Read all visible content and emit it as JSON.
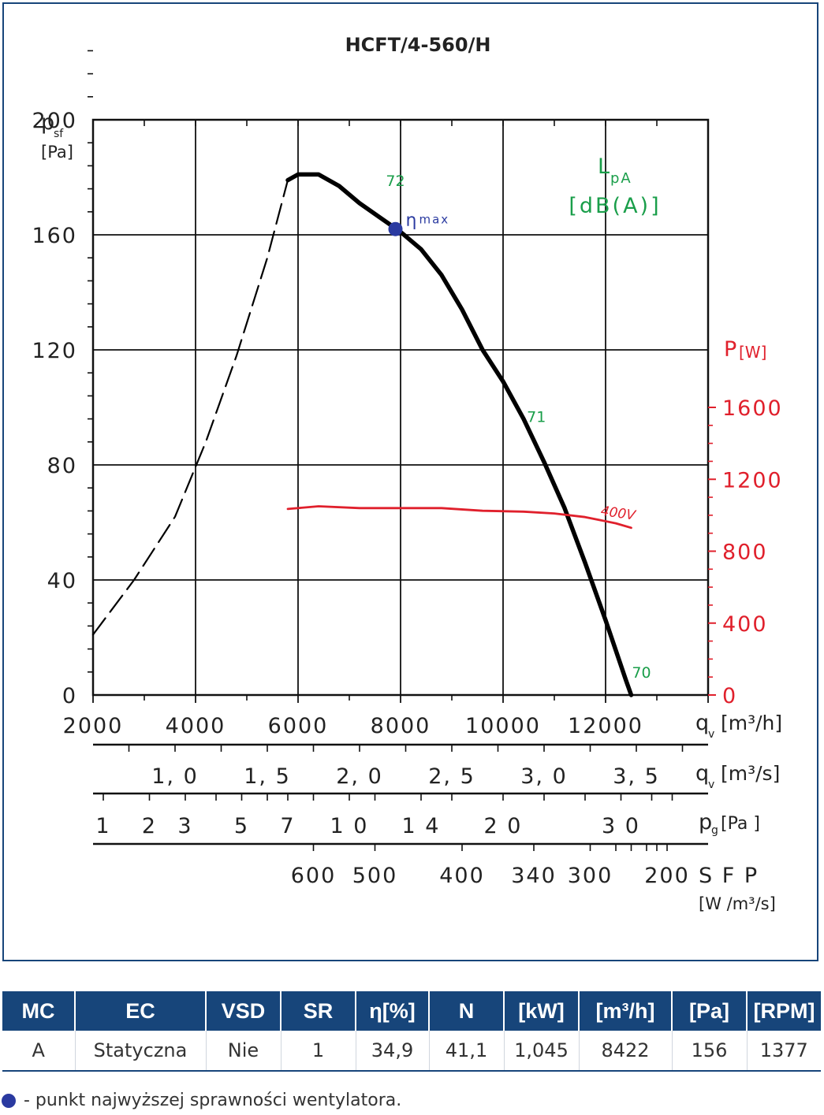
{
  "chart_data": {
    "type": "line",
    "title": "HCFT/4-560/H",
    "x_axis": {
      "label": "q",
      "label_sub": "v",
      "unit": "[m³/h]",
      "range": [
        2000,
        14000
      ],
      "ticks": [
        2000,
        4000,
        6000,
        8000,
        10000,
        12000
      ],
      "tick_labels": [
        "2000",
        "4000",
        "6000",
        "8000",
        "10000",
        "12000"
      ]
    },
    "y_axis": {
      "label": "p",
      "label_sub": "sf",
      "unit": "[Pa]",
      "range": [
        0,
        200
      ],
      "ticks": [
        0,
        40,
        80,
        120,
        160,
        200
      ],
      "tick_labels": [
        "0",
        "40",
        "80",
        "120",
        "160",
        "200"
      ]
    },
    "y2_axis": {
      "label": "P",
      "unit": "[W]",
      "range": [
        0,
        1600
      ],
      "ticks": [
        0,
        400,
        800,
        1200,
        1600
      ],
      "tick_labels": [
        "0",
        "400",
        "800",
        "1200",
        "1600"
      ],
      "color": "#e0202c"
    },
    "secondary_scales": [
      {
        "label": "q",
        "label_sub": "v",
        "unit": "[m³/s]",
        "tick_labels": [
          {
            "x": 3600,
            "text": "1, 0"
          },
          {
            "x": 5400,
            "text": "1, 5"
          },
          {
            "x": 7200,
            "text": "2, 0"
          },
          {
            "x": 9000,
            "text": "2, 5"
          },
          {
            "x": 10800,
            "text": "3, 0"
          },
          {
            "x": 12600,
            "text": "3, 5"
          }
        ]
      },
      {
        "label": "p",
        "label_sub": "g",
        "unit": "[Pa ]",
        "tick_labels": [
          {
            "x": 2200,
            "text": "1"
          },
          {
            "x": 3100,
            "text": "2"
          },
          {
            "x": 3800,
            "text": "3"
          },
          {
            "x": 4900,
            "text": "5"
          },
          {
            "x": 5800,
            "text": "7"
          },
          {
            "x": 7000,
            "text": "1 0"
          },
          {
            "x": 8400,
            "text": "1 4"
          },
          {
            "x": 10000,
            "text": "2 0"
          },
          {
            "x": 12300,
            "text": "3 0"
          }
        ]
      },
      {
        "label": "S F P",
        "unit": "[W /m³/s]",
        "tick_labels": [
          {
            "x": 6300,
            "text": "600"
          },
          {
            "x": 7500,
            "text": "500"
          },
          {
            "x": 9200,
            "text": "400"
          },
          {
            "x": 10600,
            "text": "340"
          },
          {
            "x": 11700,
            "text": "300"
          },
          {
            "x": 13200,
            "text": "200"
          }
        ]
      }
    ],
    "series": [
      {
        "role": "pressure_dashed",
        "color": "#000000",
        "x": [
          2000,
          2800,
          3600,
          4200,
          4800,
          5400,
          5800
        ],
        "y": [
          21,
          40,
          62,
          88,
          118,
          152,
          179
        ]
      },
      {
        "role": "pressure",
        "color": "#000000",
        "x": [
          5800,
          6000,
          6400,
          6800,
          7200,
          7600,
          8000,
          8400,
          8800,
          9200,
          9600,
          10000,
          10400,
          10800,
          11200,
          11600,
          12000,
          12400,
          12500
        ],
        "y": [
          179,
          181,
          181,
          177,
          171,
          166,
          161,
          155,
          146,
          134,
          120,
          109,
          96,
          81,
          65,
          46,
          26,
          5,
          0
        ]
      },
      {
        "name": "400V",
        "axis": "y2",
        "color": "#e0202c",
        "x": [
          5800,
          6400,
          7200,
          8000,
          8800,
          9600,
          10400,
          11000,
          11600,
          12200,
          12500
        ],
        "y": [
          1035,
          1050,
          1040,
          1040,
          1040,
          1025,
          1020,
          1010,
          990,
          955,
          930
        ]
      }
    ],
    "annotations": {
      "lpa_label": "L",
      "lpa_sub": "pA",
      "lpa_unit": "[dB(A)]",
      "lpa_color": "#1a9e4a",
      "noise": [
        {
          "x": 7900,
          "y": 177,
          "text": "72"
        },
        {
          "x": 10650,
          "y": 95,
          "text": "71"
        },
        {
          "x": 12700,
          "y": 6,
          "text": "70"
        }
      ],
      "eta_max": {
        "x": 7900,
        "y": 162,
        "label": "η",
        "sub": "max",
        "color": "#2a3aa0"
      },
      "series_label": {
        "x": 11900,
        "y": 1010,
        "text": "400V"
      }
    },
    "grid": true
  },
  "table": {
    "headers": [
      "MC",
      "EC",
      "VSD",
      "SR",
      "η[%]",
      "N",
      "[kW]",
      "[m³/h]",
      "[Pa]",
      "[RPM]"
    ],
    "row": [
      "A",
      "Statyczna",
      "Nie",
      "1",
      "34,9",
      "41,1",
      "1,045",
      "8422",
      "156",
      "1377"
    ]
  },
  "footnote": "- punkt najwyższej sprawności wentylatora."
}
